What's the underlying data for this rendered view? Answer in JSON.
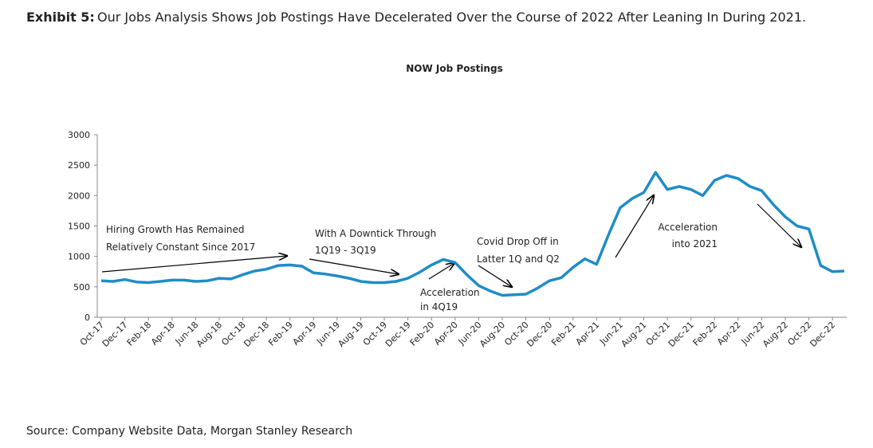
{
  "chart_data": {
    "type": "line",
    "exhibit_label": "Exhibit 5:",
    "caption": "Our Jobs Analysis Shows Job Postings Have Decelerated Over the Course of 2022 After Leaning In During 2021.",
    "title": "NOW Job Postings",
    "source": "Source: Company Website Data, Morgan Stanley Research",
    "categories": [
      "Oct-17",
      null,
      "Dec-17",
      null,
      "Feb-18",
      null,
      "Apr-18",
      null,
      "Jun-18",
      null,
      "Aug-18",
      null,
      "Oct-18",
      null,
      "Dec-18",
      null,
      "Feb-19",
      null,
      "Apr-19",
      null,
      "Jun-19",
      null,
      "Aug-19",
      null,
      "Oct-19",
      null,
      "Dec-19",
      null,
      "Feb-20",
      null,
      "Apr-20",
      null,
      "Jun-20",
      null,
      "Aug-20",
      null,
      "Oct-20",
      null,
      "Dec-20",
      null,
      "Feb-21",
      null,
      "Apr-21",
      null,
      "Jun-21",
      null,
      "Aug-21",
      null,
      "Oct-21",
      null,
      "Dec-21",
      null,
      "Feb-22",
      null,
      "Apr-22",
      null,
      "Jun-22",
      null,
      "Aug-22",
      null,
      "Oct-22",
      null,
      "Dec-22",
      null
    ],
    "series": [
      {
        "name": "NOW Job Postings",
        "color": "#1f8dc6",
        "values": [
          600,
          590,
          620,
          580,
          570,
          590,
          610,
          610,
          590,
          600,
          640,
          630,
          700,
          760,
          790,
          850,
          860,
          840,
          730,
          710,
          680,
          640,
          590,
          570,
          570,
          590,
          640,
          740,
          860,
          950,
          900,
          700,
          520,
          430,
          360,
          370,
          380,
          480,
          600,
          650,
          820,
          960,
          870,
          1350,
          1800,
          1950,
          2050,
          2380,
          2100,
          2150,
          2100,
          2000,
          2250,
          2330,
          2280,
          2150,
          2080,
          1850,
          1650,
          1500,
          1450,
          850,
          750,
          760
        ]
      }
    ],
    "ylim": [
      0,
      3000
    ],
    "yticks": [
      0,
      500,
      1000,
      1500,
      2000,
      2500,
      3000
    ],
    "annotations": [
      "Hiring Growth Has Remained",
      "Relatively Constant Since 2017",
      "With A Downtick Through",
      "1Q19 - 3Q19",
      "Covid Drop Off in",
      "Latter 1Q and Q2",
      "Acceleration",
      "in 4Q19",
      "Acceleration",
      "into 2021"
    ]
  }
}
